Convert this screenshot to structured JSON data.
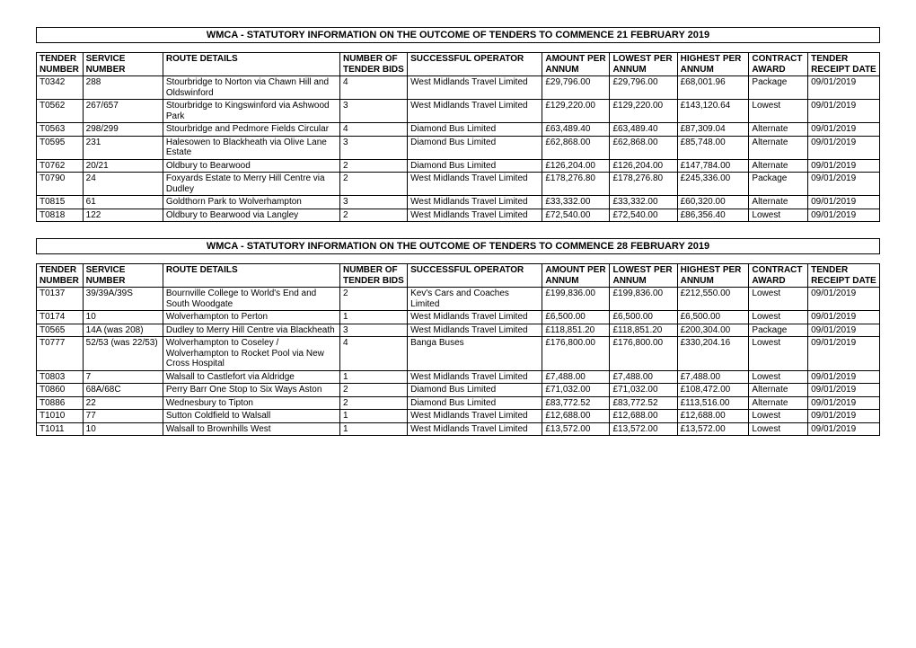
{
  "sections": [
    {
      "title": "WMCA - STATUTORY INFORMATION ON THE OUTCOME OF TENDERS TO COMMENCE  21 FEBRUARY 2019",
      "headers": {
        "tender": "TENDER NUMBER",
        "service": "SERVICE NUMBER",
        "route": "ROUTE DETAILS",
        "bids": "NUMBER OF TENDER BIDS",
        "op": "SUCCESSFUL OPERATOR",
        "amt": "AMOUNT PER ANNUM",
        "low": "LOWEST PER ANNUM",
        "high": "HIGHEST PER ANNUM",
        "award": "CONTRACT AWARD",
        "date": "TENDER RECEIPT DATE"
      },
      "rows": [
        {
          "tender": "T0342",
          "service": "288",
          "route": "Stourbridge to Norton via Chawn Hill and Oldswinford",
          "bids": "4",
          "op": "West Midlands Travel Limited",
          "amt": "£29,796.00",
          "low": "£29,796.00",
          "high": "£68,001.96",
          "award": "Package",
          "date": "09/01/2019"
        },
        {
          "tender": "T0562",
          "service": "267/657",
          "route": "Stourbridge to Kingswinford via Ashwood Park",
          "bids": "3",
          "op": "West Midlands Travel Limited",
          "amt": "£129,220.00",
          "low": "£129,220.00",
          "high": "£143,120.64",
          "award": "Lowest",
          "date": "09/01/2019"
        },
        {
          "tender": "T0563",
          "service": "298/299",
          "route": "Stourbridge and Pedmore Fields Circular",
          "bids": "4",
          "op": "Diamond Bus Limited",
          "amt": "£63,489.40",
          "low": "£63,489.40",
          "high": "£87,309.04",
          "award": "Alternate",
          "date": "09/01/2019"
        },
        {
          "tender": "T0595",
          "service": "231",
          "route": "Halesowen to Blackheath via Olive Lane Estate",
          "bids": "3",
          "op": "Diamond Bus Limited",
          "amt": "£62,868.00",
          "low": "£62,868.00",
          "high": "£85,748.00",
          "award": "Alternate",
          "date": "09/01/2019"
        },
        {
          "tender": "T0762",
          "service": "20/21",
          "route": "Oldbury to Bearwood",
          "bids": "2",
          "op": "Diamond Bus Limited",
          "amt": "£126,204.00",
          "low": "£126,204.00",
          "high": "£147,784.00",
          "award": "Alternate",
          "date": "09/01/2019"
        },
        {
          "tender": "T0790",
          "service": "24",
          "route": "Foxyards Estate to Merry Hill Centre via Dudley",
          "bids": "2",
          "op": "West Midlands Travel Limited",
          "amt": "£178,276.80",
          "low": "£178,276.80",
          "high": "£245,336.00",
          "award": "Package",
          "date": "09/01/2019"
        },
        {
          "tender": "T0815",
          "service": "61",
          "route": "Goldthorn Park to Wolverhampton",
          "bids": "3",
          "op": "West Midlands Travel Limited",
          "amt": "£33,332.00",
          "low": "£33,332.00",
          "high": "£60,320.00",
          "award": "Alternate",
          "date": "09/01/2019"
        },
        {
          "tender": "T0818",
          "service": "122",
          "route": "Oldbury to Bearwood via Langley",
          "bids": "2",
          "op": "West Midlands Travel Limited",
          "amt": "£72,540.00",
          "low": "£72,540.00",
          "high": "£86,356.40",
          "award": "Lowest",
          "date": "09/01/2019"
        }
      ]
    },
    {
      "title": "WMCA - STATUTORY INFORMATION ON THE OUTCOME OF TENDERS TO COMMENCE  28 FEBRUARY 2019",
      "headers": {
        "tender": "TENDER NUMBER",
        "service": "SERVICE NUMBER",
        "route": "ROUTE DETAILS",
        "bids": "NUMBER OF TENDER BIDS",
        "op": "SUCCESSFUL OPERATOR",
        "amt": "AMOUNT PER ANNUM",
        "low": "LOWEST PER ANNUM",
        "high": "HIGHEST PER ANNUM",
        "award": "CONTRACT AWARD",
        "date": "TENDER RECEIPT DATE"
      },
      "rows": [
        {
          "tender": "T0137",
          "service": "39/39A/39S",
          "route": "Bournville College to World's End and South Woodgate",
          "bids": "2",
          "op": "Kev's Cars and Coaches Limited",
          "amt": "£199,836.00",
          "low": "£199,836.00",
          "high": "£212,550.00",
          "award": "Lowest",
          "date": "09/01/2019"
        },
        {
          "tender": "T0174",
          "service": "10",
          "route": "Wolverhampton to Perton",
          "bids": "1",
          "op": "West Midlands Travel Limited",
          "amt": "£6,500.00",
          "low": "£6,500.00",
          "high": "£6,500.00",
          "award": "Lowest",
          "date": "09/01/2019"
        },
        {
          "tender": "T0565",
          "service": "14A (was 208)",
          "route": "Dudley to Merry Hill Centre via Blackheath",
          "bids": "3",
          "op": "West Midlands Travel Limited",
          "amt": "£118,851.20",
          "low": "£118,851.20",
          "high": "£200,304.00",
          "award": "Package",
          "date": "09/01/2019"
        },
        {
          "tender": "T0777",
          "service": "52/53 (was 22/53)",
          "route": "Wolverhampton to Coseley / Wolverhampton to Rocket Pool via New Cross Hospital",
          "bids": "4",
          "op": "Banga Buses",
          "amt": "£176,800.00",
          "low": "£176,800.00",
          "high": "£330,204.16",
          "award": "Lowest",
          "date": "09/01/2019"
        },
        {
          "tender": "T0803",
          "service": "7",
          "route": "Walsall to Castlefort via Aldridge",
          "bids": "1",
          "op": "West Midlands Travel Limited",
          "amt": "£7,488.00",
          "low": "£7,488.00",
          "high": "£7,488.00",
          "award": "Lowest",
          "date": "09/01/2019"
        },
        {
          "tender": "T0860",
          "service": "68A/68C",
          "route": "Perry Barr One Stop to Six Ways Aston",
          "bids": "2",
          "op": "Diamond Bus Limited",
          "amt": "£71,032.00",
          "low": "£71,032.00",
          "high": "£108,472.00",
          "award": "Alternate",
          "date": "09/01/2019"
        },
        {
          "tender": "T0886",
          "service": "22",
          "route": "Wednesbury to Tipton",
          "bids": "2",
          "op": "Diamond Bus Limited",
          "amt": "£83,772.52",
          "low": "£83,772.52",
          "high": "£113,516.00",
          "award": "Alternate",
          "date": "09/01/2019"
        },
        {
          "tender": "T1010",
          "service": "77",
          "route": "Sutton Coldfield to Walsall",
          "bids": "1",
          "op": "West Midlands Travel Limited",
          "amt": "£12,688.00",
          "low": "£12,688.00",
          "high": "£12,688.00",
          "award": "Lowest",
          "date": "09/01/2019"
        },
        {
          "tender": "T1011",
          "service": "10",
          "route": "Walsall to Brownhills West",
          "bids": "1",
          "op": "West Midlands Travel Limited",
          "amt": "£13,572.00",
          "low": "£13,572.00",
          "high": "£13,572.00",
          "award": "Lowest",
          "date": "09/01/2019"
        }
      ]
    }
  ]
}
